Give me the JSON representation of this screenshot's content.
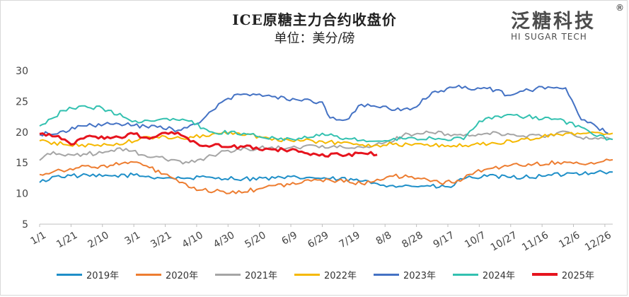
{
  "title": "ICE原糖主力合约收盘价",
  "subtitle": "单位：美分/磅",
  "logo": {
    "cn": "泛糖科技",
    "en": "HI SUGAR TECH",
    "reg": "®"
  },
  "chart_data": {
    "type": "line",
    "title": "ICE原糖主力合约收盘价",
    "ylabel": "单位：美分/磅",
    "ylim": [
      5,
      30
    ],
    "yticks": [
      5,
      10,
      15,
      20,
      25,
      30
    ],
    "x_ticks": [
      "1/1",
      "1/21",
      "2/10",
      "3/1",
      "3/21",
      "4/10",
      "4/30",
      "5/20",
      "6/9",
      "6/29",
      "7/19",
      "8/8",
      "8/28",
      "9/17",
      "10/7",
      "10/27",
      "11/16",
      "12/6",
      "12/26"
    ],
    "x_tick_days": [
      0,
      20,
      40,
      60,
      80,
      100,
      120,
      140,
      160,
      180,
      200,
      220,
      240,
      260,
      280,
      300,
      320,
      340,
      360
    ],
    "grid": false,
    "legend_position": "bottom",
    "series": [
      {
        "name": "2019年",
        "color": "#1f8fc8",
        "points": [
          [
            0,
            11.8
          ],
          [
            10,
            12.8
          ],
          [
            20,
            12.9
          ],
          [
            40,
            12.8
          ],
          [
            60,
            13.0
          ],
          [
            75,
            12.6
          ],
          [
            90,
            12.5
          ],
          [
            110,
            12.6
          ],
          [
            130,
            12.4
          ],
          [
            150,
            12.5
          ],
          [
            170,
            12.6
          ],
          [
            185,
            12.4
          ],
          [
            200,
            12.2
          ],
          [
            215,
            11.6
          ],
          [
            225,
            11.3
          ],
          [
            245,
            11.2
          ],
          [
            262,
            11.0
          ],
          [
            268,
            12.4
          ],
          [
            285,
            12.8
          ],
          [
            300,
            12.6
          ],
          [
            320,
            12.8
          ],
          [
            340,
            13.3
          ],
          [
            355,
            13.5
          ],
          [
            365,
            13.5
          ]
        ]
      },
      {
        "name": "2020年",
        "color": "#ed7d31",
        "points": [
          [
            0,
            13.1
          ],
          [
            10,
            13.7
          ],
          [
            25,
            14.2
          ],
          [
            45,
            14.6
          ],
          [
            60,
            15.1
          ],
          [
            70,
            14.2
          ],
          [
            85,
            12.5
          ],
          [
            95,
            11.0
          ],
          [
            100,
            10.5
          ],
          [
            115,
            10.4
          ],
          [
            125,
            10.0
          ],
          [
            140,
            10.8
          ],
          [
            150,
            11.3
          ],
          [
            165,
            11.6
          ],
          [
            175,
            12.3
          ],
          [
            190,
            12.1
          ],
          [
            205,
            11.6
          ],
          [
            215,
            12.3
          ],
          [
            225,
            12.8
          ],
          [
            245,
            12.5
          ],
          [
            255,
            11.7
          ],
          [
            268,
            12.0
          ],
          [
            272,
            13.0
          ],
          [
            285,
            14.0
          ],
          [
            300,
            14.6
          ],
          [
            315,
            14.8
          ],
          [
            330,
            15.1
          ],
          [
            340,
            14.9
          ],
          [
            355,
            15.0
          ],
          [
            365,
            15.5
          ]
        ]
      },
      {
        "name": "2021年",
        "color": "#a5a5a5",
        "points": [
          [
            0,
            15.4
          ],
          [
            5,
            16.5
          ],
          [
            20,
            16.3
          ],
          [
            40,
            16.6
          ],
          [
            55,
            17.3
          ],
          [
            65,
            16.3
          ],
          [
            80,
            15.6
          ],
          [
            95,
            15.0
          ],
          [
            110,
            16.2
          ],
          [
            120,
            17.0
          ],
          [
            140,
            17.4
          ],
          [
            160,
            17.5
          ],
          [
            180,
            17.8
          ],
          [
            195,
            17.4
          ],
          [
            210,
            17.5
          ],
          [
            220,
            18.3
          ],
          [
            235,
            19.7
          ],
          [
            250,
            19.9
          ],
          [
            270,
            19.4
          ],
          [
            285,
            19.8
          ],
          [
            300,
            19.6
          ],
          [
            320,
            19.3
          ],
          [
            335,
            20.1
          ],
          [
            350,
            18.9
          ],
          [
            365,
            18.8
          ]
        ]
      },
      {
        "name": "2022年",
        "color": "#f5b800",
        "points": [
          [
            0,
            18.6
          ],
          [
            15,
            18.0
          ],
          [
            35,
            17.8
          ],
          [
            55,
            18.3
          ],
          [
            70,
            19.2
          ],
          [
            90,
            19.0
          ],
          [
            110,
            19.7
          ],
          [
            125,
            19.9
          ],
          [
            140,
            19.3
          ],
          [
            160,
            18.6
          ],
          [
            180,
            18.5
          ],
          [
            200,
            18.0
          ],
          [
            215,
            17.9
          ],
          [
            225,
            18.0
          ],
          [
            245,
            17.9
          ],
          [
            260,
            17.8
          ],
          [
            275,
            17.9
          ],
          [
            290,
            18.2
          ],
          [
            305,
            18.6
          ],
          [
            320,
            19.2
          ],
          [
            335,
            19.8
          ],
          [
            350,
            19.9
          ],
          [
            365,
            19.8
          ]
        ]
      },
      {
        "name": "2023年",
        "color": "#4472c4",
        "points": [
          [
            0,
            19.6
          ],
          [
            15,
            20.2
          ],
          [
            30,
            21.0
          ],
          [
            45,
            21.3
          ],
          [
            60,
            21.1
          ],
          [
            75,
            20.8
          ],
          [
            90,
            20.3
          ],
          [
            100,
            21.3
          ],
          [
            110,
            23.5
          ],
          [
            120,
            25.5
          ],
          [
            130,
            26.2
          ],
          [
            150,
            25.8
          ],
          [
            165,
            25.2
          ],
          [
            180,
            24.9
          ],
          [
            185,
            22.3
          ],
          [
            195,
            22.0
          ],
          [
            205,
            24.5
          ],
          [
            215,
            24.1
          ],
          [
            230,
            23.5
          ],
          [
            240,
            24.1
          ],
          [
            250,
            26.5
          ],
          [
            265,
            27.3
          ],
          [
            285,
            27.1
          ],
          [
            300,
            26.0
          ],
          [
            320,
            27.4
          ],
          [
            335,
            27.2
          ],
          [
            345,
            22.0
          ],
          [
            355,
            20.8
          ],
          [
            362,
            19.8
          ]
        ]
      },
      {
        "name": "2024年",
        "color": "#33c1b0",
        "points": [
          [
            0,
            21.0
          ],
          [
            15,
            23.5
          ],
          [
            25,
            24.2
          ],
          [
            40,
            23.9
          ],
          [
            55,
            22.3
          ],
          [
            65,
            21.6
          ],
          [
            85,
            22.2
          ],
          [
            95,
            21.8
          ],
          [
            110,
            20.0
          ],
          [
            130,
            19.8
          ],
          [
            150,
            19.0
          ],
          [
            165,
            19.0
          ],
          [
            180,
            19.8
          ],
          [
            195,
            19.0
          ],
          [
            210,
            18.5
          ],
          [
            220,
            18.6
          ],
          [
            235,
            19.1
          ],
          [
            250,
            19.0
          ],
          [
            270,
            18.8
          ],
          [
            280,
            21.8
          ],
          [
            290,
            22.6
          ],
          [
            310,
            22.5
          ],
          [
            330,
            22.1
          ],
          [
            345,
            20.8
          ],
          [
            355,
            19.3
          ],
          [
            365,
            18.8
          ]
        ]
      },
      {
        "name": "2025年",
        "color": "#e6141e",
        "points": [
          [
            0,
            19.7
          ],
          [
            10,
            19.3
          ],
          [
            20,
            18.0
          ],
          [
            30,
            19.3
          ],
          [
            45,
            19.0
          ],
          [
            60,
            19.7
          ],
          [
            70,
            18.9
          ],
          [
            80,
            19.9
          ],
          [
            90,
            19.5
          ],
          [
            100,
            18.2
          ],
          [
            110,
            17.8
          ],
          [
            130,
            17.6
          ],
          [
            150,
            17.2
          ],
          [
            165,
            16.8
          ],
          [
            180,
            16.4
          ],
          [
            195,
            16.2
          ],
          [
            205,
            16.6
          ],
          [
            215,
            16.3
          ]
        ]
      }
    ]
  }
}
